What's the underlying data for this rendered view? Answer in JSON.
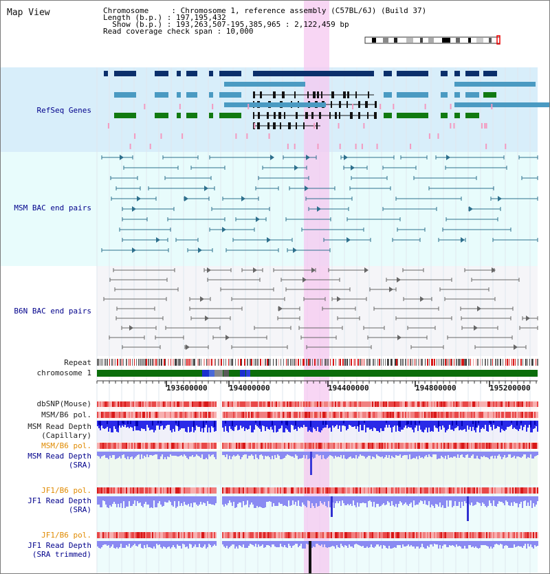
{
  "view": {
    "title": "Map View",
    "chromosome_line": "Chromosome     : Chromosome 1, reference assembly (C57BL/6J) (Build 37)",
    "length_line": "Length (b.p.) : 197,195,432",
    "show_line": "  Show (b.p.) : 193,263,507-195,385,965 : 2,122,459 bp",
    "coverage_line": "Read coverage check span : 10,000"
  },
  "tracks": {
    "refseq": "RefSeq Genes",
    "msm_bac": "MSM BAC end pairs",
    "b6n_bac": "B6N BAC end pairs",
    "repeat": "Repeat",
    "chromosome": "chromosome 1",
    "dbsnp": "dbSNP(Mouse)",
    "msm_b6_pol": "MSM/B6 pol.",
    "msm_depth_cap_1": "MSM Read Depth",
    "msm_depth_cap_2": "(Capillary)",
    "msm_b6_pol_2": "MSM/B6 pol.",
    "msm_depth_sra_1": "MSM Read Depth",
    "msm_depth_sra_2": "(SRA)",
    "jf1_b6_pol": "JF1/B6 pol.",
    "jf1_depth_sra_1": "JF1 Read Depth",
    "jf1_depth_sra_2": "(SRA)",
    "jf1_b6_pol_2": "JF1/B6 pol.",
    "jf1_depth_trim_1": "JF1 Read Depth",
    "jf1_depth_trim_2": "(SRA trimmed)"
  },
  "axis": {
    "ticks": [
      "193600000",
      "194000000",
      "194400000",
      "194800000",
      "195200000"
    ]
  },
  "colors": {
    "gene_navy": "#0b2f6b",
    "gene_teal": "#4a9ac2",
    "gene_green": "#117a11",
    "bac_teal": "#2d6f8c",
    "bac_gray": "#666666",
    "highlight": "#f6c8f0",
    "depth_blue": "#1010e0",
    "depth_light": "#8a8af2",
    "pol_red": "#e84040"
  }
}
